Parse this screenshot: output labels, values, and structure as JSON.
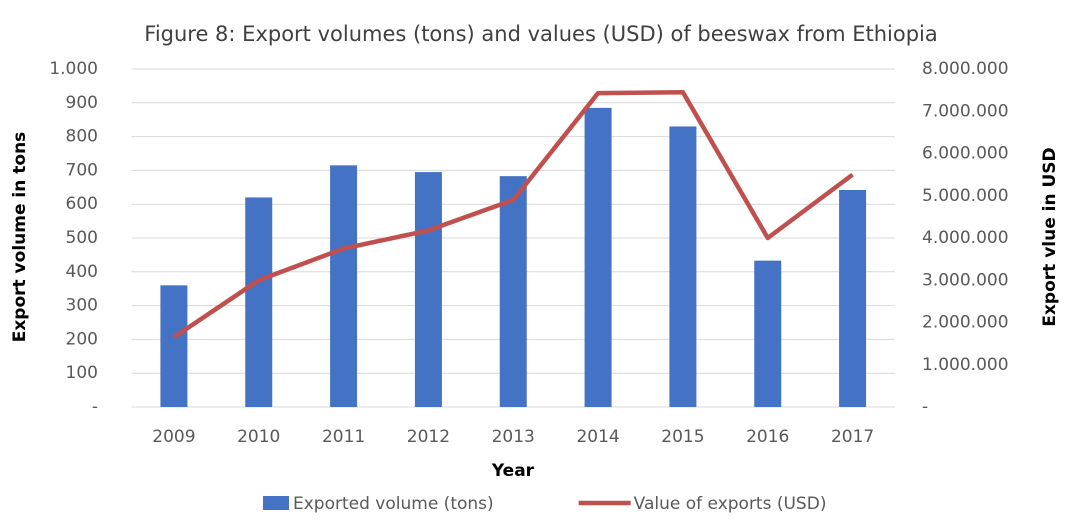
{
  "chart_data": {
    "type": "bar_line",
    "title": "Figure 8: Export volumes (tons) and values (USD) of beeswax from Ethiopia",
    "x_label": "Year",
    "y_label": "Export volume in tons",
    "y2_label": "Export vlue in USD",
    "categories": [
      "2009",
      "2010",
      "2011",
      "2012",
      "2013",
      "2014",
      "2015",
      "2016",
      "2017"
    ],
    "series": [
      {
        "name": "Exported volume (tons)",
        "type": "bar",
        "color": "#4472c4",
        "values": [
          360,
          620,
          715,
          695,
          683,
          885,
          830,
          433,
          642
        ]
      },
      {
        "name": "Value of exports (USD)",
        "type": "line",
        "axis": "y2",
        "color": "#c0504d",
        "values": [
          1650000,
          3000000,
          3750000,
          4180000,
          4900000,
          7430000,
          7450000,
          4000000,
          5500000
        ]
      }
    ],
    "ylim": [
      0,
      1000
    ],
    "yticks": [
      {
        "value": 0,
        "label": "-"
      },
      100,
      200,
      300,
      400,
      500,
      600,
      700,
      800,
      900,
      {
        "value": 1000,
        "label": "1.000"
      }
    ],
    "y2lim": [
      0,
      8000000
    ],
    "y2ticks": [
      {
        "value": 0,
        "label": "-"
      },
      {
        "value": 1000000,
        "label": "1.000.000"
      },
      {
        "value": 2000000,
        "label": "2.000.000"
      },
      {
        "value": 3000000,
        "label": "3.000.000"
      },
      {
        "value": 4000000,
        "label": "4.000.000"
      },
      {
        "value": 5000000,
        "label": "5.000.000"
      },
      {
        "value": 6000000,
        "label": "6.000.000"
      },
      {
        "value": 7000000,
        "label": "7.000.000"
      },
      {
        "value": 8000000,
        "label": "8.000.000"
      }
    ],
    "grid": true,
    "legend": "bottom"
  }
}
